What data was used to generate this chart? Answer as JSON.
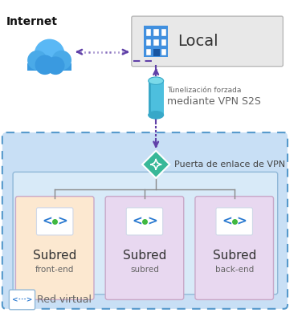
{
  "fig_width": 3.81,
  "fig_height": 4.05,
  "dpi": 100,
  "bg_color": "#ffffff",
  "title_internet": "Internet",
  "title_local": "Local",
  "title_vpn_gateway": "Puerta de enlace de VPN",
  "title_tunnel_label1": "Tunelización forzada",
  "title_tunnel_label2": "mediante VPN S2S",
  "subnet1_label": "Subred",
  "subnet1_sublabel": "front-end",
  "subnet2_label": "Subred",
  "subnet2_sublabel": "subred",
  "subnet3_label": "Subred",
  "subnet3_sublabel": "back-end",
  "vnet_label": "Red virtual",
  "cloud_color_top": "#5ab4f0",
  "cloud_color_bot": "#3a8fd4",
  "arrow_color": "#6040a8",
  "tunnel_color_body": "#4dbfde",
  "tunnel_color_top": "#7adaea",
  "tunnel_color_dark": "#38a8c8",
  "vnet_bg": "#c8dff5",
  "vnet_border": "#5599cc",
  "local_box_bg": "#e8e8e8",
  "local_box_border": "#b8b8b8",
  "subnet1_bg": "#fce8d0",
  "subnet2_bg": "#e8d8f0",
  "subnet3_bg": "#e8d8f0",
  "subnet_border": "#c8a8c8",
  "gateway_color": "#38b898",
  "gateway_border": "#ffffff",
  "inner_box_bg": "#d8eaf8",
  "inner_box_border": "#90b8d8",
  "icon_blue": "#2878d0",
  "icon_green": "#40b840",
  "line_color": "#888888"
}
